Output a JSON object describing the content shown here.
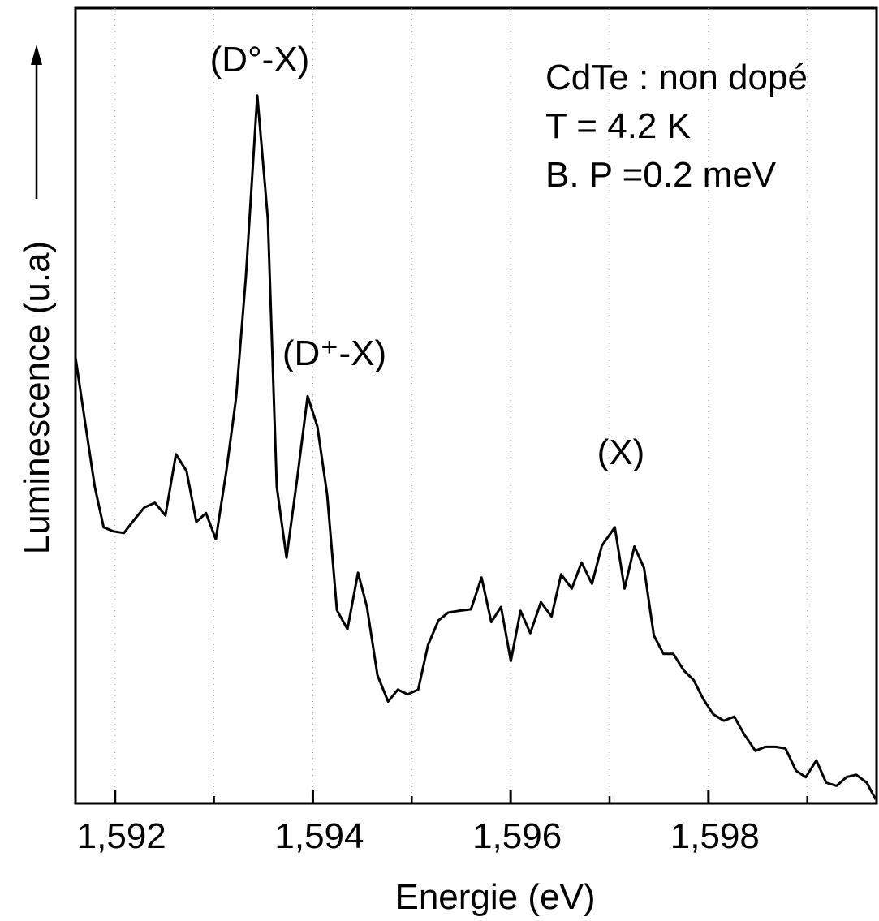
{
  "chart_data": {
    "type": "line",
    "xlabel": "Energie (eV)",
    "ylabel": "Luminescence (u.a)",
    "annotations": [
      "(D°-X)",
      "(D⁺-X)",
      "(X)"
    ],
    "info": [
      "CdTe : non dopé",
      "T = 4.2 K",
      "B. P =0.2 meV"
    ],
    "xlim": [
      1.5916,
      1.5997
    ],
    "ylim": [
      0,
      100
    ],
    "xticks": [
      {
        "value": 1.592,
        "label": "1,592"
      },
      {
        "value": 1.594,
        "label": "1,594"
      },
      {
        "value": 1.596,
        "label": "1,596"
      },
      {
        "value": 1.598,
        "label": "1,598"
      }
    ],
    "minor_xticks": [
      1.593,
      1.595,
      1.597,
      1.599
    ],
    "grid": true,
    "color": "#000000",
    "x": [
      1.5916,
      1.591696,
      1.591795,
      1.591885,
      1.591984,
      1.59209,
      1.592197,
      1.592296,
      1.592403,
      1.592509,
      1.592616,
      1.592723,
      1.592822,
      1.59292,
      1.593019,
      1.593126,
      1.593224,
      1.593323,
      1.593438,
      1.593545,
      1.593635,
      1.593734,
      1.593841,
      1.593947,
      1.594046,
      1.594145,
      1.594243,
      1.59435,
      1.594457,
      1.594547,
      1.594654,
      1.594761,
      1.594859,
      1.594958,
      1.595065,
      1.595164,
      1.59527,
      1.595369,
      1.595476,
      1.595599,
      1.595706,
      1.595804,
      1.595903,
      1.596002,
      1.5961,
      1.596199,
      1.596306,
      1.596413,
      1.596511,
      1.596618,
      1.596717,
      1.596823,
      1.596922,
      1.597053,
      1.597152,
      1.597251,
      1.597349,
      1.597448,
      1.597546,
      1.597645,
      1.597752,
      1.59785,
      1.597949,
      1.598048,
      1.598155,
      1.598261,
      1.59836,
      1.598475,
      1.598574,
      1.59868,
      1.598779,
      1.598886,
      1.598984,
      1.599091,
      1.59919,
      1.599297,
      1.599395,
      1.599494,
      1.599601,
      1.59969
    ],
    "values": [
      56.1,
      48.0,
      39.8,
      34.7,
      34.2,
      34.0,
      35.7,
      37.2,
      37.8,
      36.2,
      43.9,
      41.8,
      35.4,
      36.5,
      33.2,
      41.8,
      51.0,
      66.3,
      89.0,
      73.5,
      39.8,
      30.9,
      40.8,
      51.2,
      47.4,
      38.8,
      24.3,
      21.9,
      29.0,
      24.7,
      16.1,
      12.8,
      14.3,
      13.7,
      14.3,
      19.9,
      23.0,
      24.0,
      24.2,
      24.4,
      28.4,
      22.8,
      24.7,
      17.9,
      24.2,
      21.4,
      25.3,
      23.5,
      28.8,
      27.0,
      30.3,
      27.6,
      32.4,
      34.7,
      27.0,
      32.3,
      29.6,
      21.1,
      18.8,
      18.8,
      16.7,
      15.5,
      13.1,
      11.2,
      10.4,
      10.9,
      8.7,
      6.6,
      7.1,
      7.1,
      6.9,
      4.1,
      3.3,
      5.4,
      2.6,
      2.2,
      3.3,
      3.6,
      2.6,
      0.5
    ]
  }
}
